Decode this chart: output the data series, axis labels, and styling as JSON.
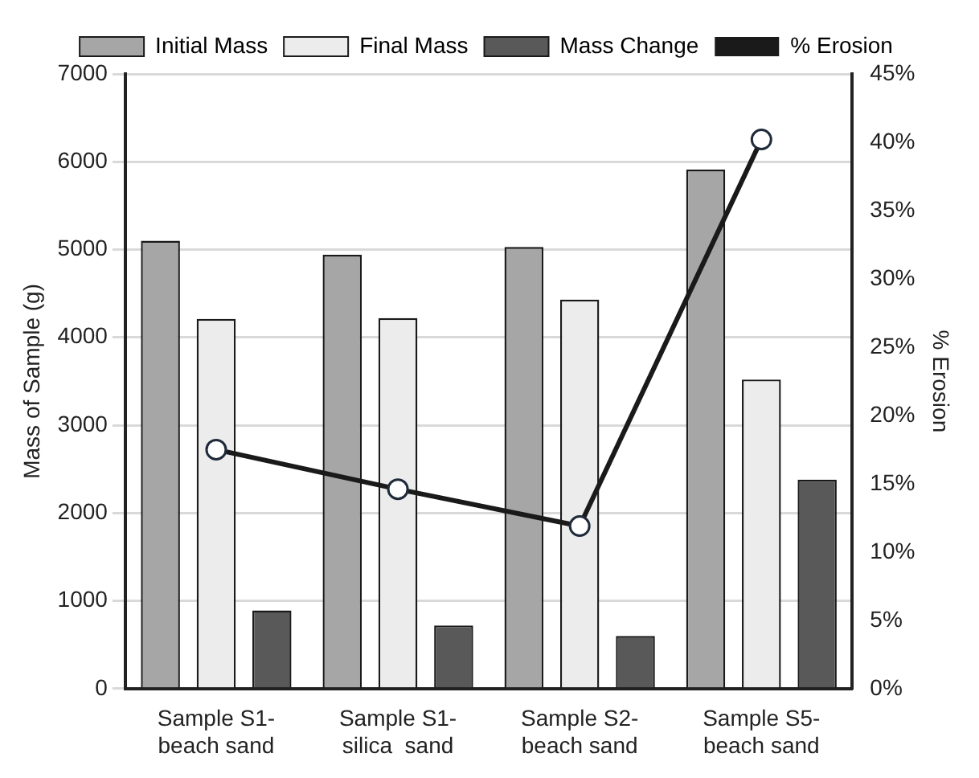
{
  "chart_data": {
    "type": "bar",
    "ylabel": "Mass of Sample (g)",
    "y2label": "% Erosion",
    "categories": [
      "Sample S1-\nbeach sand",
      "Sample S1-\nsilica  sand",
      "Sample S2-\nbeach sand",
      "Sample S5-\nbeach sand"
    ],
    "series": [
      {
        "name": "Initial Mass",
        "color": "#a6a6a6",
        "values": [
          5100,
          4940,
          5030,
          5910
        ]
      },
      {
        "name": "Final Mass",
        "color": "#ececec",
        "values": [
          4210,
          4220,
          4430,
          3520
        ]
      },
      {
        "name": "Mass Change",
        "color": "#595959",
        "values": [
          890,
          720,
          600,
          2380
        ]
      },
      {
        "name": "% Erosion",
        "type": "line",
        "axis": "y2",
        "color": "#1a1a1a",
        "marker": "circle",
        "values": [
          17.5,
          14.6,
          11.9,
          40.2
        ]
      }
    ],
    "ylim": [
      0,
      7000
    ],
    "yticks": [
      0,
      1000,
      2000,
      3000,
      4000,
      5000,
      6000,
      7000
    ],
    "y2lim": [
      0,
      45
    ],
    "y2ticks": [
      {
        "value": 0,
        "label": "0%"
      },
      {
        "value": 5,
        "label": "5%"
      },
      {
        "value": 10,
        "label": "10%"
      },
      {
        "value": 15,
        "label": "15%"
      },
      {
        "value": 20,
        "label": "20%"
      },
      {
        "value": 25,
        "label": "25%"
      },
      {
        "value": 30,
        "label": "30%"
      },
      {
        "value": 35,
        "label": "35%"
      },
      {
        "value": 40,
        "label": "40%"
      },
      {
        "value": 45,
        "label": "45%"
      }
    ],
    "grid": "y",
    "legend": "top"
  }
}
